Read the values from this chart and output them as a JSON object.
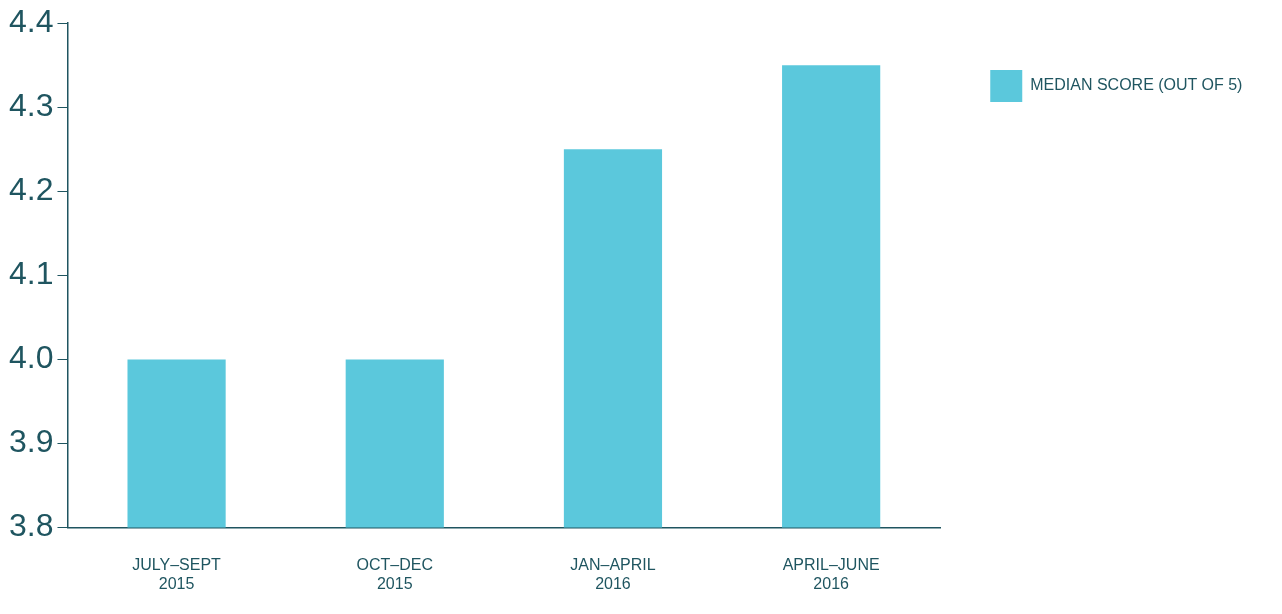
{
  "chart_data": {
    "type": "bar",
    "categories": [
      "JULY–SEPT 2015",
      "OCT–DEC 2015",
      "JAN–APRIL 2016",
      "APRIL–JUNE 2016"
    ],
    "series": [
      {
        "name": "MEDIAN SCORE (OUT OF 5)",
        "color": "#5bc8dc",
        "values": [
          4.0,
          4.0,
          4.25,
          4.35
        ]
      }
    ],
    "ylim": [
      3.8,
      4.4
    ],
    "yticks": [
      3.8,
      3.9,
      {
        "value": 4,
        "label": "4.0"
      },
      4.1,
      4.2,
      4.3,
      4.4
    ],
    "legend": "top right"
  }
}
